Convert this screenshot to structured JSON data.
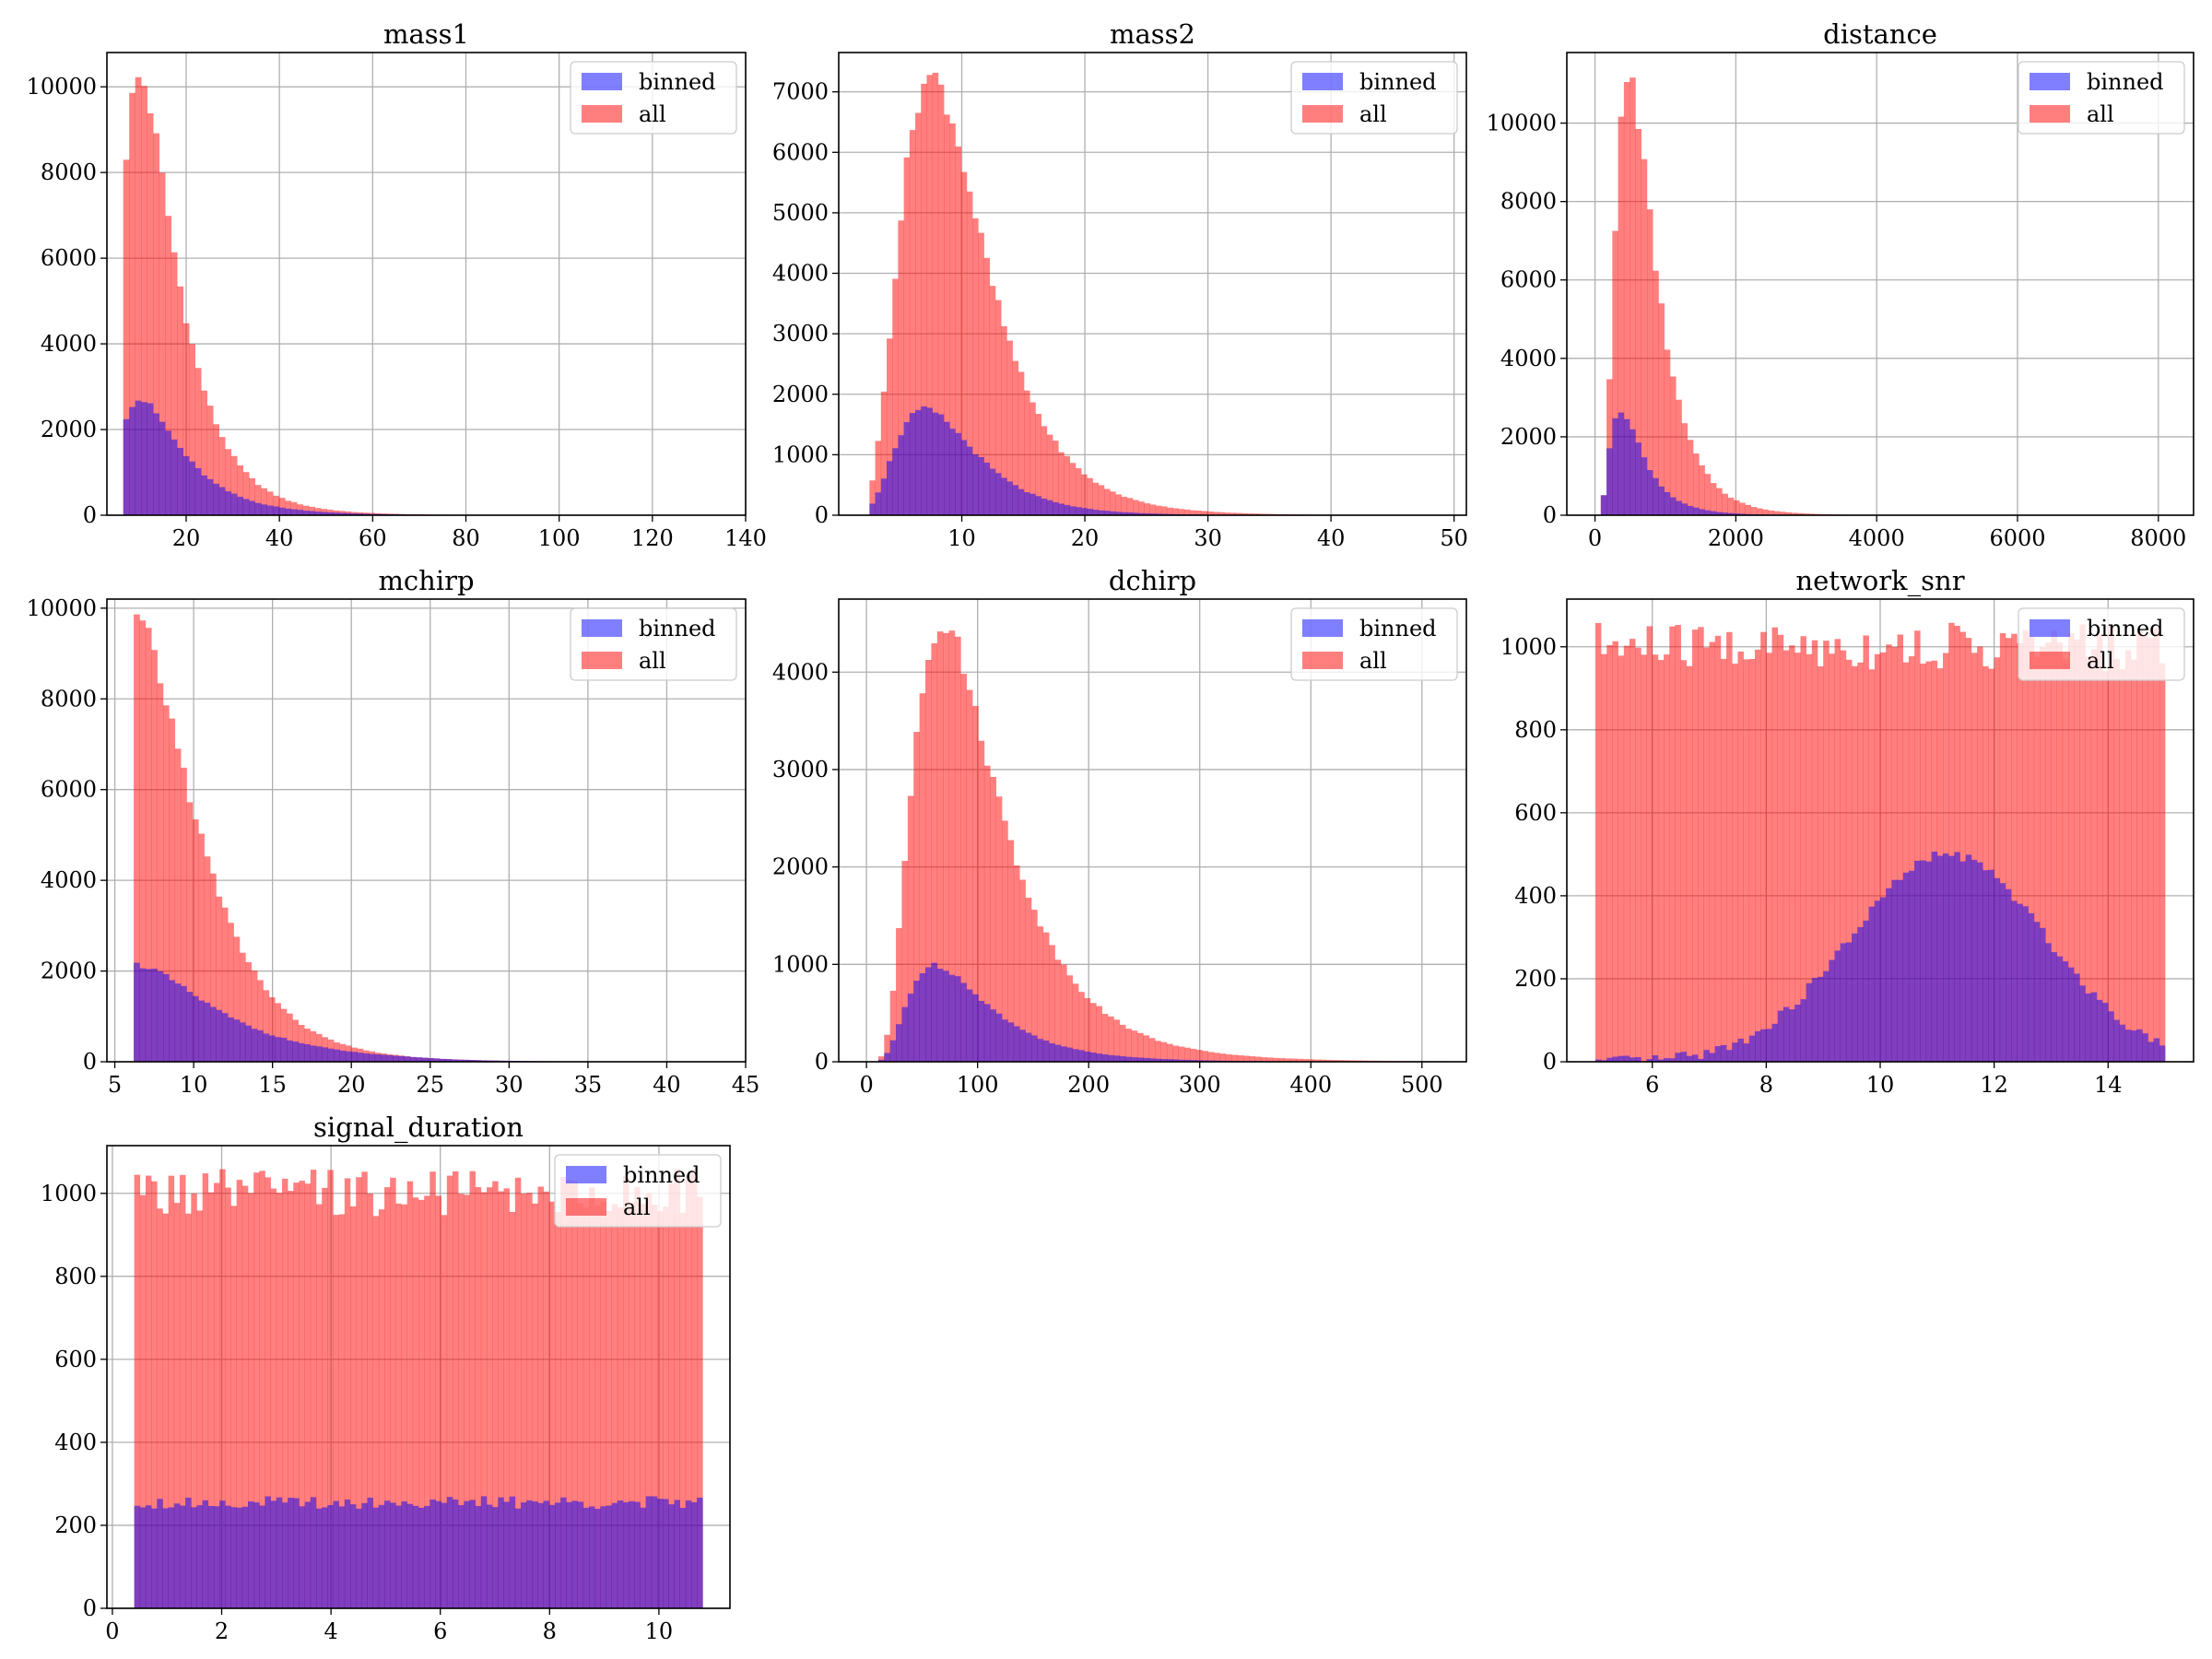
{
  "colors": {
    "binned": "#0000ff",
    "all": "#ff0000",
    "overlap": "#c0407a",
    "grid": "#b0b0b0"
  },
  "legend": {
    "binned_label": "binned",
    "all_label": "all",
    "placement": "upper right"
  },
  "chart_data": [
    {
      "type": "bar",
      "title": "mass1",
      "grid": true,
      "legend": "upper right",
      "xlim": [
        3,
        140
      ],
      "ylim": [
        0,
        10800
      ],
      "xticks": [
        20,
        40,
        60,
        80,
        100,
        120,
        140
      ],
      "yticks": [
        0,
        2000,
        4000,
        6000,
        8000,
        10000
      ],
      "bin_range": [
        6.5,
        135
      ],
      "series": [
        {
          "name": "binned",
          "shape": "lognormal",
          "peak_x": 10,
          "peak": 2700,
          "sigma": 0.6
        },
        {
          "name": "all",
          "shape": "lognormal",
          "peak_x": 10,
          "peak": 10200,
          "sigma": 0.55
        }
      ]
    },
    {
      "type": "bar",
      "title": "mass2",
      "grid": true,
      "legend": "upper right",
      "xlim": [
        0,
        51
      ],
      "ylim": [
        0,
        7650
      ],
      "xticks": [
        10,
        20,
        30,
        40,
        50
      ],
      "yticks": [
        0,
        1000,
        2000,
        3000,
        4000,
        5000,
        6000,
        7000
      ],
      "bin_range": [
        2.5,
        49
      ],
      "series": [
        {
          "name": "binned",
          "shape": "lognormal",
          "peak_x": 7,
          "peak": 1750,
          "sigma": 0.45
        },
        {
          "name": "all",
          "shape": "lognormal",
          "peak_x": 7.5,
          "peak": 7250,
          "sigma": 0.45
        }
      ]
    },
    {
      "type": "bar",
      "title": "distance",
      "grid": true,
      "legend": "upper right",
      "xlim": [
        -400,
        8500
      ],
      "ylim": [
        0,
        11800
      ],
      "xticks": [
        0,
        2000,
        4000,
        6000,
        8000
      ],
      "yticks": [
        0,
        2000,
        4000,
        6000,
        8000,
        10000
      ],
      "bin_range": [
        0,
        8200
      ],
      "series": [
        {
          "name": "binned",
          "shape": "lognormal",
          "peak_x": 360,
          "peak": 2700,
          "sigma": 0.6
        },
        {
          "name": "all",
          "shape": "lognormal",
          "peak_x": 480,
          "peak": 11200,
          "sigma": 0.55
        }
      ]
    },
    {
      "type": "bar",
      "title": "mchirp",
      "grid": true,
      "legend": "upper right",
      "xlim": [
        4.5,
        45
      ],
      "ylim": [
        0,
        10200
      ],
      "xticks": [
        5,
        10,
        15,
        20,
        25,
        30,
        35,
        40,
        45
      ],
      "yticks": [
        0,
        2000,
        4000,
        6000,
        8000,
        10000
      ],
      "bin_range": [
        6.2,
        43.5
      ],
      "series": [
        {
          "name": "binned",
          "shape": "lognormal",
          "peak_x": 6.2,
          "peak": 2150,
          "sigma": 0.55
        },
        {
          "name": "all",
          "shape": "lognormal",
          "peak_x": 6.2,
          "peak": 9750,
          "sigma": 0.45
        }
      ]
    },
    {
      "type": "bar",
      "title": "dchirp",
      "grid": true,
      "legend": "upper right",
      "xlim": [
        -25,
        540
      ],
      "ylim": [
        0,
        4750
      ],
      "xticks": [
        0,
        100,
        200,
        300,
        400,
        500
      ],
      "yticks": [
        0,
        1000,
        2000,
        3000,
        4000
      ],
      "bin_range": [
        0,
        530
      ],
      "series": [
        {
          "name": "binned",
          "shape": "lognormal",
          "peak_x": 62,
          "peak": 990,
          "sigma": 0.55
        },
        {
          "name": "all",
          "shape": "lognormal",
          "peak_x": 68,
          "peak": 4500,
          "sigma": 0.55
        }
      ]
    },
    {
      "type": "bar",
      "title": "network_snr",
      "grid": true,
      "legend": "upper right",
      "xlim": [
        4.5,
        15.5
      ],
      "ylim": [
        0,
        1115
      ],
      "xticks": [
        6,
        8,
        10,
        12,
        14
      ],
      "yticks": [
        0,
        200,
        400,
        600,
        800,
        1000
      ],
      "bin_range": [
        5,
        15
      ],
      "series": [
        {
          "name": "binned",
          "shape": "gaussian",
          "peak_x": 11.2,
          "peak": 500,
          "sigma": 1.7
        },
        {
          "name": "all",
          "shape": "uniform",
          "level": 1000
        }
      ]
    },
    {
      "type": "bar",
      "title": "signal_duration",
      "grid": true,
      "legend": "upper right",
      "xlim": [
        -0.1,
        11.3
      ],
      "ylim": [
        0,
        1115
      ],
      "xticks": [
        0,
        2,
        4,
        6,
        8,
        10
      ],
      "yticks": [
        0,
        200,
        400,
        600,
        800,
        1000
      ],
      "bin_range": [
        0.4,
        10.8
      ],
      "series": [
        {
          "name": "binned",
          "shape": "uniform",
          "level": 255
        },
        {
          "name": "all",
          "shape": "uniform",
          "level": 1000
        }
      ]
    }
  ]
}
